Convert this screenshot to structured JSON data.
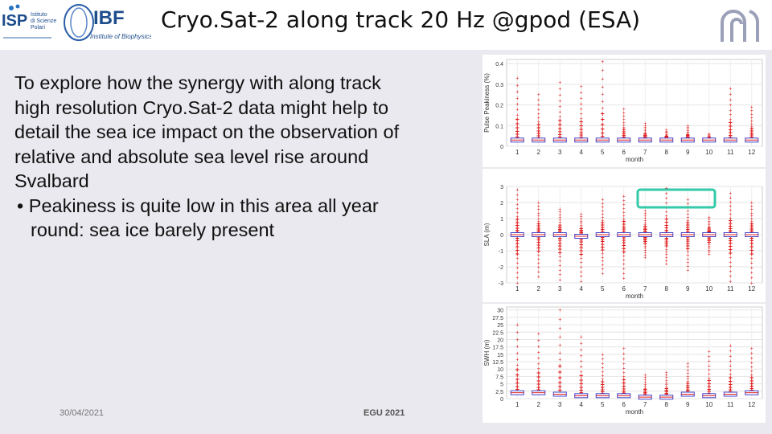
{
  "slide": {
    "title": "Cryo.Sat-2 along track 20 Hz @gpod (ESA)",
    "body": "To explore how the synergy with along track high resolution Cryo.Sat-2 data might help to detail the sea ice impact on the observation of relative and absolute sea level rise around Svalbard",
    "bullet": "Peakiness is quite low in this area all year round: sea ice barely present",
    "footer_date": "30/04/2021",
    "footer_event": "EGU 2021"
  },
  "logos": {
    "isp_text": "ISP",
    "isp_name_lines": [
      "Istituto",
      "di Scienze",
      "Polari"
    ],
    "ibf_text": "IBF",
    "ibf_sub": "Institute of Biophysics"
  },
  "colors": {
    "accent_red": "#e02020",
    "box_blue": "#4040c8",
    "highlight": "#34c9a8",
    "band": "#e9e9ef"
  },
  "chart_data": [
    {
      "type": "box",
      "ylabel": "Pulse Peakiness (%)",
      "xlabel": "month",
      "categories": [
        "1",
        "2",
        "3",
        "4",
        "5",
        "6",
        "7",
        "8",
        "9",
        "10",
        "11",
        "12"
      ],
      "yticks": [
        "0",
        "0.1",
        "0.2",
        "0.3",
        "0.4"
      ],
      "ylim": [
        0,
        0.42
      ],
      "median": [
        0.03,
        0.03,
        0.03,
        0.03,
        0.03,
        0.03,
        0.03,
        0.03,
        0.03,
        0.03,
        0.03,
        0.03
      ],
      "outlier_max": [
        0.33,
        0.25,
        0.31,
        0.29,
        0.41,
        0.18,
        0.11,
        0.08,
        0.1,
        0.06,
        0.28,
        0.19
      ]
    },
    {
      "type": "box",
      "ylabel": "SLA (m)",
      "xlabel": "month",
      "categories": [
        "1",
        "2",
        "3",
        "4",
        "5",
        "6",
        "7",
        "8",
        "9",
        "10",
        "11",
        "12"
      ],
      "yticks": [
        "-3",
        "-2",
        "-1",
        "0",
        "1",
        "2",
        "3"
      ],
      "ylim": [
        -3,
        3
      ],
      "median": [
        0,
        0,
        0,
        -0.1,
        0,
        0,
        0,
        0,
        0,
        0,
        0,
        0
      ],
      "outlier_max": [
        2.8,
        2.0,
        1.6,
        1.3,
        2.2,
        2.4,
        1.5,
        2.9,
        2.2,
        1.1,
        2.6,
        2.0
      ],
      "outlier_min": [
        -3.0,
        -2.6,
        -2.8,
        -2.9,
        -2.4,
        -2.7,
        -1.4,
        -1.8,
        -2.2,
        -1.2,
        -2.9,
        -3.0
      ]
    },
    {
      "type": "box",
      "ylabel": "SWH (m)",
      "xlabel": "month",
      "categories": [
        "1",
        "2",
        "3",
        "4",
        "5",
        "6",
        "7",
        "8",
        "9",
        "10",
        "11",
        "12"
      ],
      "yticks": [
        "0",
        "2.5",
        "5",
        "7.5",
        "10",
        "12.5",
        "15",
        "17.5",
        "20",
        "22.5",
        "25",
        "27.5",
        "30"
      ],
      "ylim": [
        0,
        31
      ],
      "median": [
        2,
        2,
        1.5,
        1,
        1,
        1,
        0.5,
        0.5,
        1.5,
        1,
        1.5,
        2
      ],
      "outlier_max": [
        25,
        22,
        30,
        21,
        15,
        17,
        8,
        9,
        12,
        16,
        18,
        17
      ]
    }
  ]
}
